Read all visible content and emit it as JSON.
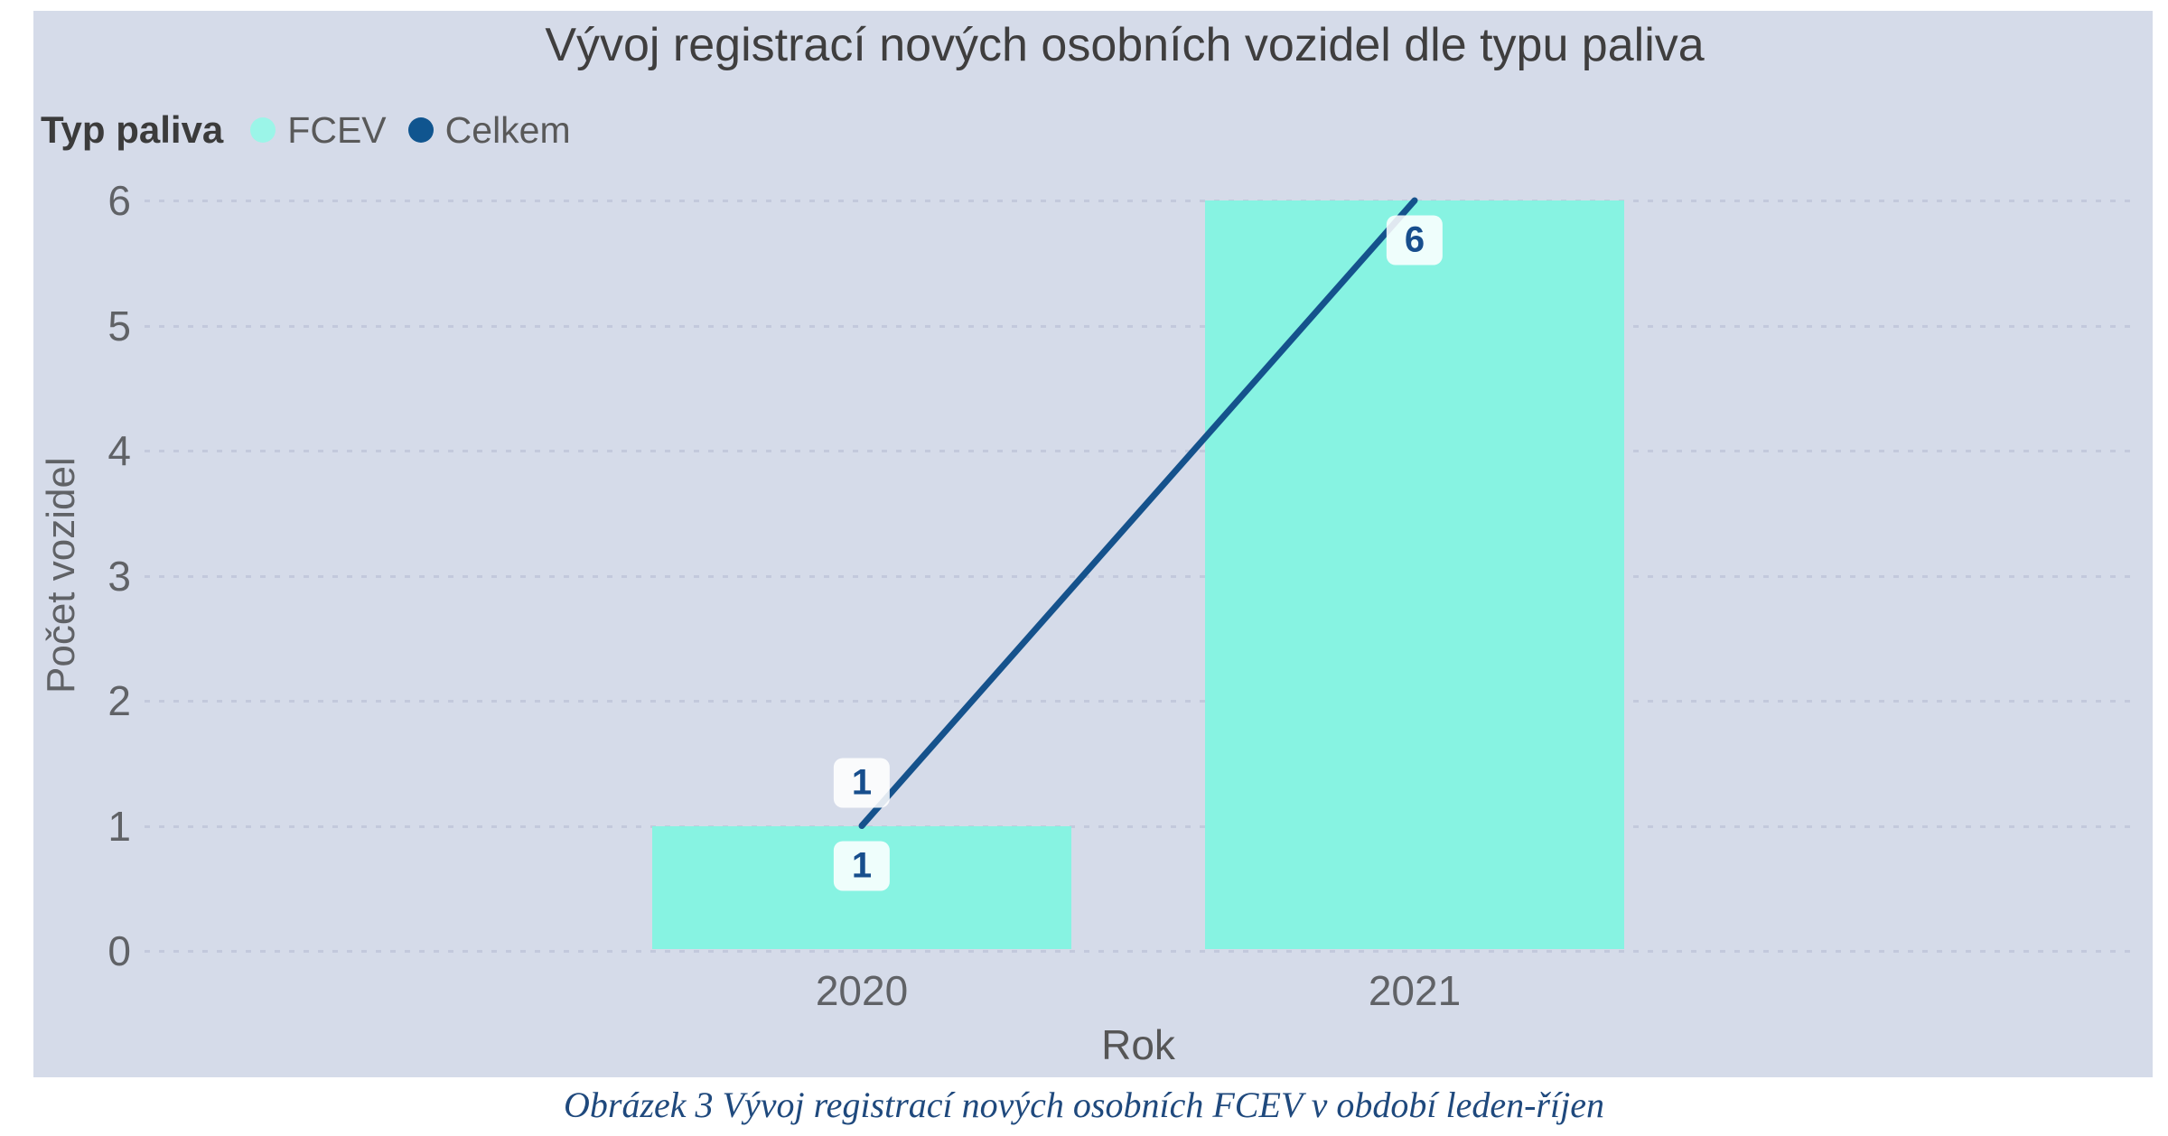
{
  "figure": {
    "caption": "Obrázek 3 Vývoj registrací nových osobních FCEV v období leden-říjen",
    "caption_color": "#1F497D"
  },
  "chart_data": {
    "type": "bar",
    "title": "Vývoj registrací nových osobních vozidel dle typu paliva",
    "categories": [
      "2020",
      "2021"
    ],
    "series": [
      {
        "name": "FCEV",
        "type": "bar",
        "values": [
          1,
          6
        ],
        "color": "#87F3E2",
        "legend_dot_color": "#9BF5E8",
        "data_labels": [
          "1",
          "6"
        ]
      },
      {
        "name": "Celkem",
        "type": "line",
        "values": [
          1,
          6
        ],
        "color": "#15528C",
        "legend_dot_color": "#10558F",
        "labeled_points": [
          {
            "index": 0,
            "value": 1,
            "label": "1",
            "position": "above"
          }
        ]
      }
    ],
    "xlabel": "Rok",
    "ylabel": "Počet vozidel",
    "ylim": [
      0,
      6
    ],
    "yticks": [
      0,
      1,
      2,
      3,
      4,
      5,
      6
    ],
    "legend_title": "Typ paliva",
    "legend_position": "top-left",
    "grid": "dotted horizontal",
    "plot_bg": "#D5DBE9",
    "grid_color": "#C3C9DC",
    "axis_text_color": "#606266",
    "value_label_color": "#174E8D"
  }
}
